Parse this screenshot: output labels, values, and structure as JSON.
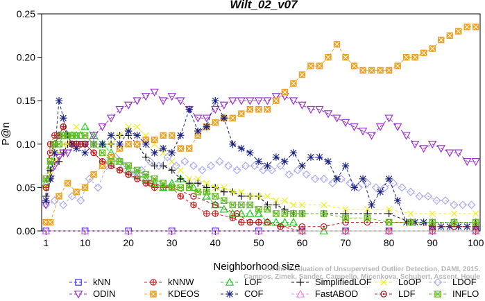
{
  "chart_data": {
    "type": "line",
    "title": "Wilt_02_v07",
    "xlabel": "Neighborhood size",
    "ylabel": "P@n",
    "xlim": [
      0,
      101
    ],
    "ylim": [
      0,
      0.25
    ],
    "x_ticks": [
      1,
      10,
      20,
      30,
      40,
      50,
      60,
      70,
      80,
      90,
      100
    ],
    "y_ticks": [
      0.0,
      0.05,
      0.1,
      0.15,
      0.2,
      0.25
    ],
    "x_tick_labels": [
      "1",
      "10",
      "20",
      "30",
      "40",
      "50",
      "60",
      "70",
      "80",
      "90",
      "100"
    ],
    "y_tick_labels": [
      "0.00",
      "0.05",
      "0.10",
      "0.15",
      "0.20",
      "0.25"
    ],
    "credit": [
      "Campos, Zimek, Sander, Campello, Micenkova, Schubert, Assent, Houle",
      "On the Evaluation of Unsupervised Outlier Detection, DAMI, 2015."
    ],
    "legend_placement": "bottom",
    "series": [
      {
        "name": "kNN",
        "color": "#3333ee",
        "marker": "square",
        "x": [
          1,
          10,
          20,
          30,
          40,
          50,
          60,
          70,
          80,
          90,
          100
        ],
        "y": [
          0,
          0,
          0,
          0,
          0,
          0,
          0,
          0,
          0,
          0,
          0
        ]
      },
      {
        "name": "kNNW",
        "color": "#cc2222",
        "marker": "circle-plus",
        "x": [
          1,
          2,
          3,
          4,
          5,
          6,
          7,
          8,
          9,
          10,
          12,
          14,
          16,
          18,
          20,
          22,
          24,
          26,
          28,
          30,
          32,
          35,
          38,
          40,
          44,
          46,
          48,
          50,
          55,
          60,
          70,
          80,
          90,
          100
        ],
        "y": [
          0.05,
          0.1,
          0.11,
          0.11,
          0.12,
          0.11,
          0.1,
          0.1,
          0.1,
          0.1,
          0.09,
          0.08,
          0.075,
          0.07,
          0.065,
          0.06,
          0.055,
          0.05,
          0.05,
          0.05,
          0.04,
          0.03,
          0.02,
          0.02,
          0.015,
          0.01,
          0.01,
          0.01,
          0.005,
          0,
          0,
          0,
          0,
          0
        ]
      },
      {
        "name": "LOF",
        "color": "#22cc22",
        "marker": "triangle-up",
        "x": [
          1,
          2,
          3,
          4,
          5,
          6,
          7,
          8,
          9,
          10,
          12,
          14,
          16,
          18,
          20,
          22,
          24,
          26,
          28,
          30,
          32,
          35,
          38,
          40,
          42,
          44,
          46,
          48,
          50,
          52,
          54,
          56,
          58,
          60,
          65,
          70,
          80,
          90,
          100
        ],
        "y": [
          0.055,
          0.075,
          0.1,
          0.11,
          0.11,
          0.11,
          0.11,
          0.11,
          0.11,
          0.12,
          0.11,
          0.1,
          0.09,
          0.08,
          0.07,
          0.065,
          0.06,
          0.055,
          0.05,
          0.055,
          0.06,
          0.05,
          0.04,
          0.03,
          0.025,
          0.02,
          0.02,
          0.02,
          0.02,
          0.01,
          0.01,
          0.01,
          0.01,
          0,
          0,
          0,
          0,
          0,
          0
        ]
      },
      {
        "name": "SimplifiedLOF",
        "color": "#111111",
        "marker": "plus",
        "x": [
          1,
          2,
          3,
          4,
          5,
          6,
          7,
          8,
          10,
          12,
          14,
          16,
          18,
          20,
          22,
          24,
          26,
          28,
          30,
          32,
          34,
          36,
          38,
          40,
          42,
          44,
          46,
          48,
          50,
          52,
          54,
          56,
          58,
          60,
          65,
          70,
          75,
          80,
          85,
          90,
          95,
          100
        ],
        "y": [
          0.04,
          0.07,
          0.08,
          0.08,
          0.09,
          0.1,
          0.1,
          0.1,
          0.1,
          0.1,
          0.1,
          0.1,
          0.11,
          0.11,
          0.1,
          0.085,
          0.075,
          0.075,
          0.07,
          0.06,
          0.055,
          0.055,
          0.05,
          0.05,
          0.045,
          0.045,
          0.04,
          0.04,
          0.04,
          0.03,
          0.03,
          0.025,
          0.02,
          0.02,
          0.02,
          0.02,
          0.02,
          0.02,
          0.01,
          0.01,
          0.01,
          0.01
        ]
      },
      {
        "name": "LoOP",
        "color": "#eeee22",
        "marker": "x",
        "x": [
          1,
          2,
          3,
          4,
          5,
          6,
          7,
          8,
          10,
          12,
          14,
          16,
          18,
          20,
          22,
          24,
          26,
          28,
          30,
          32,
          34,
          36,
          38,
          40,
          42,
          44,
          46,
          48,
          50,
          52,
          54,
          56,
          58,
          60,
          65,
          70,
          75,
          80,
          85,
          90,
          95,
          100
        ],
        "y": [
          0.05,
          0.065,
          0.08,
          0.09,
          0.1,
          0.1,
          0.11,
          0.12,
          0.11,
          0.1,
          0.1,
          0.1,
          0.11,
          0.12,
          0.12,
          0.11,
          0.1,
          0.09,
          0.08,
          0.07,
          0.06,
          0.06,
          0.055,
          0.05,
          0.05,
          0.045,
          0.045,
          0.04,
          0.04,
          0.04,
          0.035,
          0.035,
          0.03,
          0.03,
          0.03,
          0.025,
          0.025,
          0.025,
          0.02,
          0.02,
          0.02,
          0.02
        ]
      },
      {
        "name": "LDOF",
        "color": "#aaaaee",
        "marker": "diamond",
        "x": [
          1,
          3,
          5,
          7,
          9,
          11,
          13,
          15,
          17,
          19,
          21,
          23,
          25,
          27,
          29,
          31,
          33,
          35,
          37,
          39,
          41,
          43,
          45,
          47,
          49,
          51,
          53,
          55,
          57,
          59,
          61,
          63,
          65,
          67,
          69,
          71,
          73,
          75,
          77,
          79,
          81,
          83,
          85,
          87,
          89,
          91,
          93,
          95,
          97,
          99
        ],
        "y": [
          0.03,
          0.035,
          0.03,
          0.04,
          0.035,
          0.06,
          0.05,
          0.075,
          0.085,
          0.075,
          0.065,
          0.07,
          0.08,
          0.075,
          0.085,
          0.075,
          0.08,
          0.075,
          0.07,
          0.075,
          0.08,
          0.075,
          0.07,
          0.075,
          0.075,
          0.07,
          0.07,
          0.075,
          0.065,
          0.07,
          0.065,
          0.06,
          0.06,
          0.055,
          0.06,
          0.055,
          0.05,
          0.055,
          0.05,
          0.05,
          0.055,
          0.05,
          0.045,
          0.04,
          0.04,
          0.035,
          0.035,
          0.03,
          0.03,
          0.03
        ]
      },
      {
        "name": "ODIN",
        "color": "#9933cc",
        "marker": "triangle-down",
        "x": [
          1,
          2,
          3,
          4,
          5,
          6,
          8,
          10,
          12,
          14,
          16,
          18,
          20,
          22,
          24,
          26,
          28,
          30,
          32,
          34,
          36,
          38,
          40,
          42,
          44,
          46,
          48,
          50,
          52,
          54,
          56,
          58,
          60,
          62,
          64,
          66,
          68,
          70,
          72,
          74,
          76,
          78,
          80,
          82,
          84,
          86,
          88,
          90,
          92,
          94,
          96,
          98,
          100
        ],
        "y": [
          0.03,
          0.06,
          0.075,
          0.085,
          0.09,
          0.09,
          0.1,
          0.1,
          0.11,
          0.12,
          0.13,
          0.14,
          0.145,
          0.15,
          0.155,
          0.16,
          0.15,
          0.155,
          0.15,
          0.14,
          0.13,
          0.13,
          0.14,
          0.145,
          0.15,
          0.15,
          0.15,
          0.15,
          0.15,
          0.155,
          0.155,
          0.15,
          0.145,
          0.14,
          0.14,
          0.135,
          0.13,
          0.125,
          0.12,
          0.115,
          0.11,
          0.12,
          0.13,
          0.12,
          0.11,
          0.1,
          0.095,
          0.1,
          0.095,
          0.09,
          0.09,
          0.08,
          0.08
        ]
      },
      {
        "name": "KDEOS",
        "color": "#f0a020",
        "marker": "square-x",
        "x": [
          1,
          2,
          4,
          6,
          8,
          10,
          12,
          14,
          16,
          18,
          20,
          22,
          24,
          26,
          28,
          30,
          32,
          34,
          36,
          38,
          40,
          42,
          44,
          46,
          48,
          50,
          52,
          54,
          56,
          58,
          60,
          62,
          64,
          66,
          68,
          70,
          72,
          74,
          76,
          78,
          80,
          82,
          84,
          86,
          88,
          90,
          92,
          94,
          96,
          98,
          100
        ],
        "y": [
          0.01,
          0.01,
          0.04,
          0.055,
          0.045,
          0.05,
          0.065,
          0.075,
          0.085,
          0.095,
          0.1,
          0.1,
          0.105,
          0.105,
          0.11,
          0.11,
          0.095,
          0.095,
          0.11,
          0.12,
          0.125,
          0.13,
          0.13,
          0.135,
          0.14,
          0.14,
          0.14,
          0.15,
          0.16,
          0.17,
          0.18,
          0.19,
          0.19,
          0.2,
          0.215,
          0.2,
          0.19,
          0.185,
          0.185,
          0.185,
          0.185,
          0.19,
          0.2,
          0.2,
          0.205,
          0.21,
          0.22,
          0.225,
          0.23,
          0.235,
          0.235
        ]
      },
      {
        "name": "COF",
        "color": "#1a237e",
        "marker": "asterisk",
        "x": [
          1,
          2,
          3,
          4,
          5,
          6,
          7,
          8,
          10,
          12,
          14,
          16,
          18,
          20,
          22,
          24,
          26,
          28,
          30,
          32,
          34,
          36,
          38,
          40,
          42,
          44,
          46,
          48,
          50,
          52,
          54,
          56,
          58,
          60,
          62,
          64,
          66,
          68,
          70,
          72,
          74,
          76,
          78,
          80,
          82,
          84,
          86,
          88,
          90,
          92,
          94,
          96,
          98,
          100
        ],
        "y": [
          0.035,
          0.06,
          0.09,
          0.15,
          0.13,
          0.11,
          0.1,
          0.095,
          0.09,
          0.1,
          0.1,
          0.11,
          0.1,
          0.115,
          0.11,
          0.1,
          0.09,
          0.095,
          0.09,
          0.11,
          0.14,
          0.115,
          0.12,
          0.15,
          0.13,
          0.1,
          0.095,
          0.09,
          0.08,
          0.075,
          0.085,
          0.08,
          0.09,
          0.075,
          0.085,
          0.085,
          0.08,
          0.06,
          0.075,
          0.05,
          0.06,
          0.03,
          0.045,
          0.06,
          0.035,
          0.01,
          0.01,
          0.01,
          0.005,
          0.005,
          0.005,
          0.005,
          0.005,
          0.005
        ]
      },
      {
        "name": "FastABOD",
        "color": "#ee88ee",
        "marker": "triangle-half",
        "x": [
          1,
          10,
          20,
          30,
          40,
          50,
          60,
          70,
          80,
          90,
          100
        ],
        "y": [
          0,
          0,
          0,
          0,
          0,
          0,
          0,
          0,
          0,
          0,
          0
        ]
      },
      {
        "name": "LDF",
        "color": "#aa2222",
        "marker": "circle-dot",
        "x": [
          1,
          2,
          3,
          4,
          5,
          6,
          7,
          8,
          9,
          10,
          12,
          14,
          16,
          18,
          20,
          25,
          30,
          35,
          40,
          45,
          48,
          50,
          52,
          55,
          60,
          65,
          70,
          75,
          80,
          85,
          90,
          95,
          100
        ],
        "y": [
          0.05,
          0.09,
          0.1,
          0.11,
          0.12,
          0.11,
          0.1,
          0.1,
          0.1,
          0.1,
          0.09,
          0.08,
          0.075,
          0.07,
          0.065,
          0.055,
          0.05,
          0.04,
          0.03,
          0.02,
          0.01,
          0.01,
          0.01,
          0.005,
          0.005,
          0.005,
          0.01,
          0.01,
          0.01,
          0.01,
          0.005,
          0.005,
          0.005
        ]
      },
      {
        "name": "INFLO",
        "color": "#66bb22",
        "marker": "square-star",
        "x": [
          1,
          2,
          3,
          4,
          5,
          6,
          7,
          8,
          10,
          12,
          14,
          16,
          18,
          20,
          22,
          24,
          26,
          28,
          30,
          32,
          34,
          36,
          38,
          40,
          42,
          44,
          46,
          48,
          50,
          52,
          54,
          56,
          58,
          60,
          65,
          70,
          75,
          80,
          85,
          90,
          95,
          100
        ],
        "y": [
          0.06,
          0.08,
          0.1,
          0.1,
          0.11,
          0.11,
          0.11,
          0.11,
          0.11,
          0.1,
          0.09,
          0.08,
          0.08,
          0.075,
          0.07,
          0.065,
          0.06,
          0.055,
          0.05,
          0.05,
          0.05,
          0.045,
          0.045,
          0.04,
          0.035,
          0.03,
          0.03,
          0.03,
          0.025,
          0.025,
          0.02,
          0.02,
          0.02,
          0.02,
          0.02,
          0.015,
          0.015,
          0.01,
          0.01,
          0.01,
          0.01,
          0.01
        ]
      }
    ]
  }
}
